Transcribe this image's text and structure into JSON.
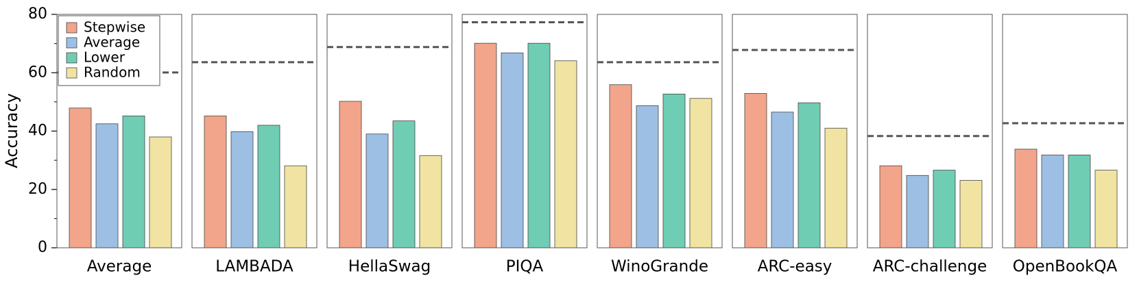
{
  "chart_data": {
    "type": "grouped_bar_panels",
    "ylabel": "Accuracy",
    "categories": [
      "Average",
      "LAMBADA",
      "HellaSwag",
      "PIQA",
      "WinoGrande",
      "ARC-easy",
      "ARC-challenge",
      "OpenBookQA"
    ],
    "series": [
      {
        "name": "Stepwise",
        "color": "#f2a58a",
        "values": [
          47.9,
          45.2,
          50.2,
          70.1,
          55.9,
          52.9,
          28.1,
          33.8
        ]
      },
      {
        "name": "Average",
        "color": "#9dbfe4",
        "values": [
          42.5,
          39.8,
          39.0,
          66.8,
          48.7,
          46.5,
          24.8,
          31.8
        ]
      },
      {
        "name": "Lower",
        "color": "#6fcdb4",
        "values": [
          45.2,
          42.0,
          43.5,
          70.1,
          52.7,
          49.7,
          26.6,
          31.8
        ]
      },
      {
        "name": "Random",
        "color": "#f1e3a2",
        "values": [
          38.0,
          28.1,
          31.6,
          64.1,
          51.2,
          41.0,
          23.1,
          26.6
        ]
      }
    ],
    "reference_lines": [
      60.1,
      63.6,
      68.8,
      77.3,
      63.6,
      67.8,
      38.3,
      42.7
    ],
    "reference_color": "#555555",
    "ylim": [
      0,
      80
    ],
    "yticks": [
      0,
      20,
      40,
      60,
      80
    ],
    "minor_yticks": [
      10,
      30,
      50,
      70
    ],
    "legend": "upper left"
  }
}
